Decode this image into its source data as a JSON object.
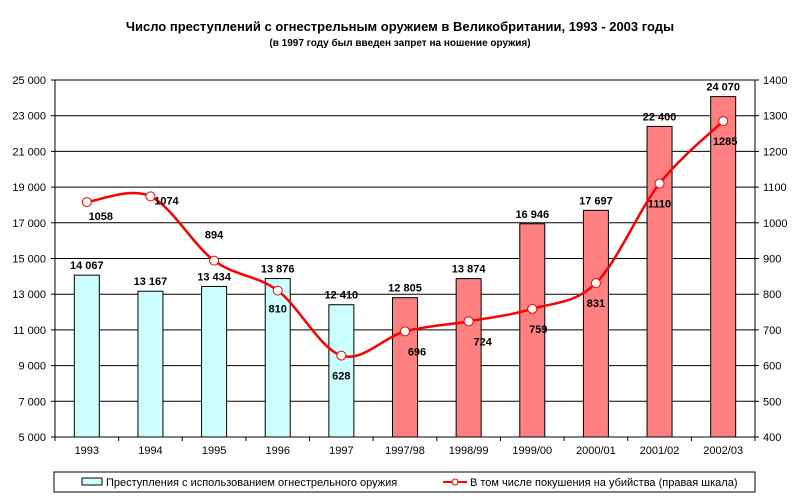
{
  "chart_data": {
    "type": "bar",
    "title": "Число преступлений с огнестрельным оружием в Великобритании, 1993 - 2003 годы",
    "subtitle": "(в 1997 году был введен запрет на ношение оружия)",
    "xlabel": "",
    "ylabel": "",
    "categories": [
      "1993",
      "1994",
      "1995",
      "1996",
      "1997",
      "1997/98",
      "1998/99",
      "1999/00",
      "2000/01",
      "2001/02",
      "2002/03"
    ],
    "left_axis": {
      "ylim": [
        5000,
        25000
      ],
      "ticks": [
        5000,
        7000,
        9000,
        11000,
        13000,
        15000,
        17000,
        19000,
        21000,
        23000,
        25000
      ],
      "tick_labels": [
        "5 000",
        "7 000",
        "9 000",
        "11 000",
        "13 000",
        "15 000",
        "17 000",
        "19 000",
        "21 000",
        "23 000",
        "25 000"
      ]
    },
    "right_axis": {
      "ylim": [
        400,
        1400
      ],
      "ticks": [
        400,
        500,
        600,
        700,
        800,
        900,
        1000,
        1100,
        1200,
        1300,
        1400
      ],
      "tick_labels": [
        "400",
        "500",
        "600",
        "700",
        "800",
        "900",
        "1000",
        "1100",
        "1200",
        "1300",
        "1400"
      ]
    },
    "grid": true,
    "legend_position": "bottom",
    "series": [
      {
        "name": "Преступления с использованием огнестрельного оружия",
        "type": "bar",
        "axis": "left",
        "values": [
          14067,
          13167,
          13434,
          13876,
          12410,
          12805,
          13874,
          16946,
          17697,
          22400,
          24070
        ],
        "labels": [
          "14 067",
          "13 167",
          "13 434",
          "13 876",
          "12 410",
          "12 805",
          "13 874",
          "16 946",
          "17 697",
          "22 400",
          "24 070"
        ],
        "colors": [
          "#CCFFFF",
          "#CCFFFF",
          "#CCFFFF",
          "#CCFFFF",
          "#CCFFFF",
          "#FF8080",
          "#FF8080",
          "#FF8080",
          "#FF8080",
          "#FF8080",
          "#FF8080"
        ]
      },
      {
        "name": "В том числе покушения на убийства (правая шкала)",
        "type": "line",
        "axis": "right",
        "smooth": true,
        "color": "#FF0000",
        "values": [
          1058,
          1074,
          894,
          810,
          628,
          696,
          724,
          759,
          831,
          1110,
          1285
        ],
        "labels": [
          "1058",
          "1074",
          "894",
          "810",
          "628",
          "696",
          "724",
          "759",
          "831",
          "1110",
          "1285"
        ]
      }
    ],
    "legend": [
      {
        "label": "Преступления с использованием огнестрельного оружия",
        "swatch": "#CCFFFF",
        "kind": "bar"
      },
      {
        "label": "В том числе покушения на убийства (правая шкала)",
        "swatch": "#FF0000",
        "kind": "line"
      }
    ]
  }
}
